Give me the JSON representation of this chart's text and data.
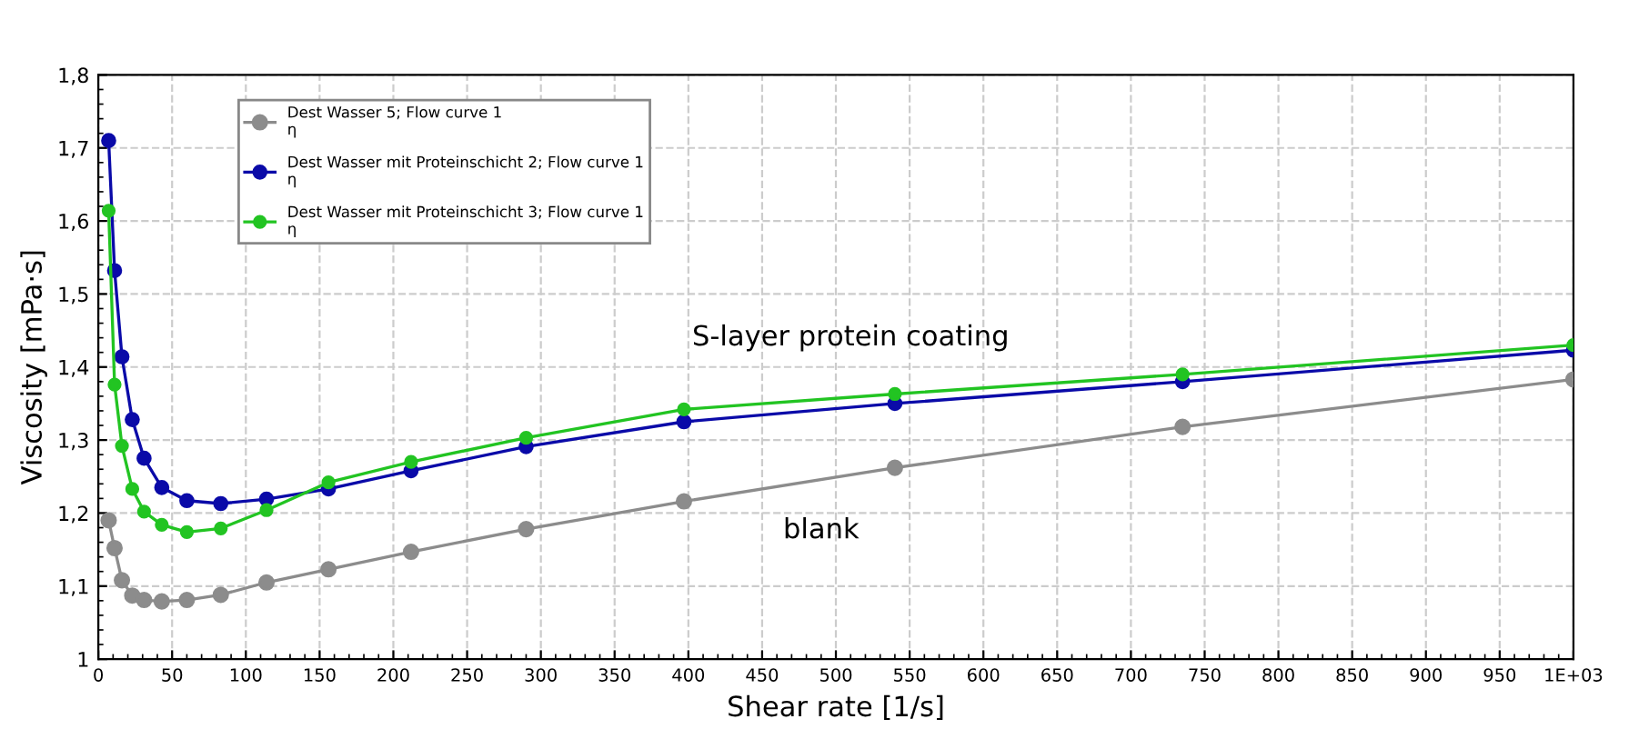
{
  "chart_data": {
    "type": "line",
    "xlabel": "Shear rate [1/s]",
    "ylabel": "Viscosity [mPa·s]",
    "x": [
      7,
      11,
      16,
      23,
      31,
      43,
      60,
      83,
      114,
      156,
      212,
      290,
      397,
      540,
      735,
      1000
    ],
    "series": [
      {
        "name": "Dest Wasser 5; Flow curve 1\nη",
        "color": "#8c8c8c",
        "values": [
          1.19,
          1.152,
          1.108,
          1.087,
          1.081,
          1.079,
          1.081,
          1.088,
          1.105,
          1.123,
          1.147,
          1.178,
          1.216,
          1.262,
          1.318,
          1.383
        ]
      },
      {
        "name": "Dest Wasser mit Proteinschicht 2; Flow curve 1\nη",
        "color": "#0a0aa8",
        "values": [
          1.71,
          1.532,
          1.414,
          1.328,
          1.275,
          1.235,
          1.217,
          1.213,
          1.219,
          1.233,
          1.258,
          1.291,
          1.325,
          1.35,
          1.38,
          1.423
        ]
      },
      {
        "name": "Dest Wasser mit Proteinschicht 3; Flow curve 1\nη",
        "color": "#22c422",
        "values": [
          1.614,
          1.376,
          1.292,
          1.233,
          1.202,
          1.184,
          1.174,
          1.179,
          1.204,
          1.242,
          1.27,
          1.303,
          1.342,
          1.363,
          1.39,
          1.43
        ]
      }
    ],
    "xlim": [
      0,
      1000
    ],
    "xticks": [
      0,
      50,
      100,
      150,
      200,
      250,
      300,
      350,
      400,
      450,
      500,
      550,
      600,
      650,
      700,
      750,
      800,
      850,
      900,
      950,
      {
        "value": 1000,
        "label": "1E+03"
      }
    ],
    "ylim": [
      1,
      1.8
    ],
    "yticks": [
      1,
      {
        "value": 1.1,
        "label": "1,1"
      },
      {
        "value": 1.2,
        "label": "1,2"
      },
      {
        "value": 1.3,
        "label": "1,3"
      },
      {
        "value": 1.4,
        "label": "1,4"
      },
      {
        "value": 1.5,
        "label": "1,5"
      },
      {
        "value": 1.6,
        "label": "1,6"
      },
      {
        "value": 1.7,
        "label": "1,7"
      },
      {
        "value": 1.8,
        "label": "1,8"
      }
    ],
    "annotations": [
      "S-layer protein coating",
      "blank"
    ],
    "grid": true,
    "legend": "top left",
    "marker": "circle",
    "line_style": "solid"
  }
}
